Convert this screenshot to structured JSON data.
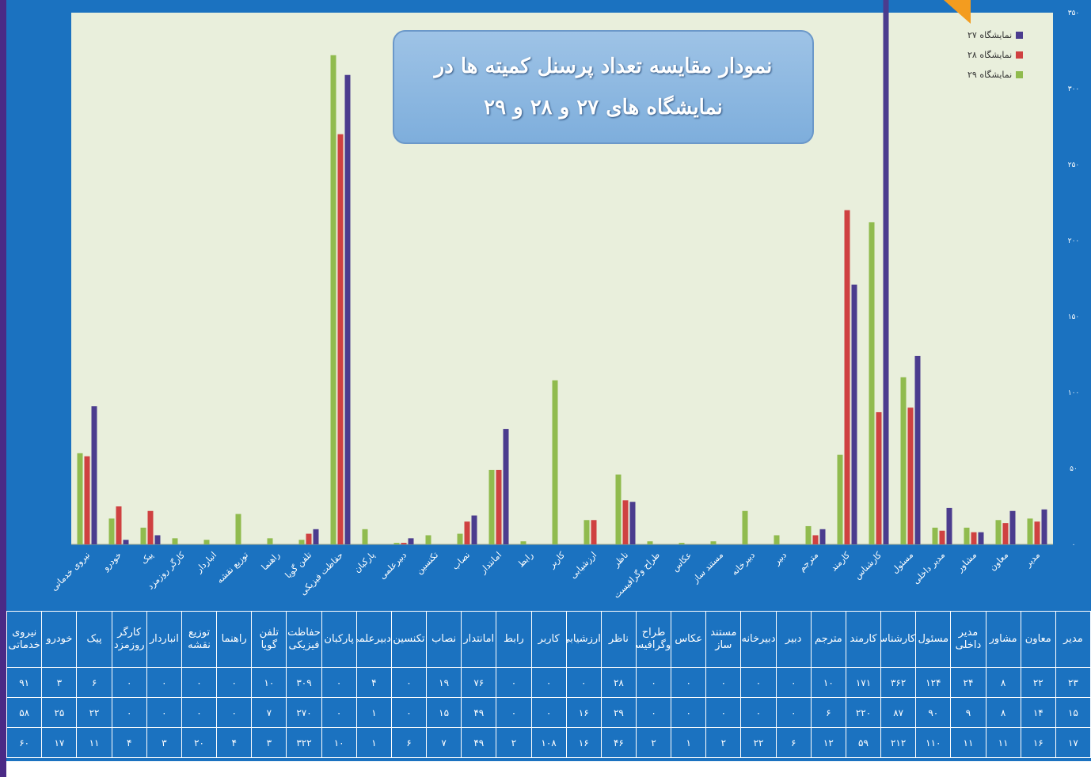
{
  "title_lines": [
    "نمودار مقایسه تعداد پرسنل کمیته ها در",
    "نمایشگاه های ۲۷ و ۲۸ و ۲۹"
  ],
  "colors": {
    "s27": "#4b3c8e",
    "s28": "#cf4141",
    "s29": "#90bb4e",
    "frame": "#1b72c0",
    "plot": "#e9efdc"
  },
  "chart_data": {
    "type": "bar",
    "direction": "rtl",
    "ylim": [
      0,
      350
    ],
    "yticks": [
      "۰",
      "۵۰",
      "۱۰۰",
      "۱۵۰",
      "۲۰۰",
      "۲۵۰",
      "۳۰۰",
      "۳۵۰"
    ],
    "grid": false,
    "legend_position": "top-right",
    "categories": [
      "مدیر",
      "معاون",
      "مشاور",
      "مدیر داخلی",
      "مسئول",
      "کارشناس",
      "کارمند",
      "مترجم",
      "دبیر",
      "دبیرخانه",
      "مستند ساز",
      "عکاس",
      "طراح وگرافیست",
      "ناظر",
      "ارزشیابی",
      "کاربر",
      "رابط",
      "امانتدار",
      "نصاب",
      "تکنسین",
      "دبیرعلمی",
      "پارکبان",
      "حفاظت فیزیکی",
      "تلفن گویا",
      "راهنما",
      "توزیع نقشه",
      "انباردار",
      "کارگر روزمزد",
      "پیک",
      "خودرو",
      "نیروی خدماتی"
    ],
    "series": [
      {
        "name": "نمایشگاه ۲۷",
        "values": [
          23,
          22,
          8,
          24,
          124,
          362,
          171,
          10,
          0,
          0,
          0,
          0,
          0,
          28,
          0,
          0,
          0,
          76,
          19,
          0,
          4,
          0,
          309,
          10,
          0,
          0,
          0,
          0,
          6,
          3,
          91
        ]
      },
      {
        "name": "نمایشگاه ۲۸",
        "values": [
          15,
          14,
          8,
          9,
          90,
          87,
          220,
          6,
          0,
          0,
          0,
          0,
          0,
          29,
          16,
          0,
          0,
          49,
          15,
          0,
          1,
          0,
          270,
          7,
          0,
          0,
          0,
          0,
          22,
          25,
          58
        ]
      },
      {
        "name": "نمایشگاه ۲۹",
        "values": [
          17,
          16,
          11,
          11,
          110,
          212,
          59,
          12,
          6,
          22,
          2,
          1,
          2,
          46,
          16,
          108,
          2,
          49,
          7,
          6,
          1,
          10,
          322,
          3,
          4,
          20,
          3,
          4,
          11,
          17,
          60
        ]
      }
    ]
  },
  "table": {
    "headers": [
      [
        "مدیر"
      ],
      [
        "معاون"
      ],
      [
        "مشاور"
      ],
      [
        "مدیر",
        "داخلی"
      ],
      [
        "مسئول"
      ],
      [
        "کارشناس"
      ],
      [
        "کارمند"
      ],
      [
        "مترجم"
      ],
      [
        "دبیر"
      ],
      [
        "دبیرخانه"
      ],
      [
        "مستند",
        "ساز"
      ],
      [
        "عکاس"
      ],
      [
        "طراح",
        "وگرافیست"
      ],
      [
        "ناظر"
      ],
      [
        "ارزشیابی"
      ],
      [
        "کاربر"
      ],
      [
        "رابط"
      ],
      [
        "امانتدار"
      ],
      [
        "نصاب"
      ],
      [
        "تکنسین"
      ],
      [
        "دبیرعلمی"
      ],
      [
        "پارکبان"
      ],
      [
        "حفاظت",
        "فیزیکی"
      ],
      [
        "تلفن",
        "گویا"
      ],
      [
        "راهنما"
      ],
      [
        "توزیع",
        "نقشه"
      ],
      [
        "انباردار"
      ],
      [
        "کارگر",
        "روزمزد"
      ],
      [
        "پیک"
      ],
      [
        "خودرو"
      ],
      [
        "نیروی",
        "خدماتی"
      ]
    ],
    "rows": [
      [
        "۲۳",
        "۲۲",
        "۸",
        "۲۴",
        "۱۲۴",
        "۳۶۲",
        "۱۷۱",
        "۱۰",
        "۰",
        "۰",
        "۰",
        "۰",
        "۰",
        "۲۸",
        "۰",
        "۰",
        "۰",
        "۷۶",
        "۱۹",
        "۰",
        "۴",
        "۰",
        "۳۰۹",
        "۱۰",
        "۰",
        "۰",
        "۰",
        "۰",
        "۶",
        "۳",
        "۹۱"
      ],
      [
        "۱۵",
        "۱۴",
        "۸",
        "۹",
        "۹۰",
        "۸۷",
        "۲۲۰",
        "۶",
        "۰",
        "۰",
        "۰",
        "۰",
        "۰",
        "۲۹",
        "۱۶",
        "۰",
        "۰",
        "۴۹",
        "۱۵",
        "۰",
        "۱",
        "۰",
        "۲۷۰",
        "۷",
        "۰",
        "۰",
        "۰",
        "۰",
        "۲۲",
        "۲۵",
        "۵۸"
      ],
      [
        "۱۷",
        "۱۶",
        "۱۱",
        "۱۱",
        "۱۱۰",
        "۲۱۲",
        "۵۹",
        "۱۲",
        "۶",
        "۲۲",
        "۲",
        "۱",
        "۲",
        "۴۶",
        "۱۶",
        "۱۰۸",
        "۲",
        "۴۹",
        "۷",
        "۶",
        "۱",
        "۱۰",
        "۳۲۲",
        "۳",
        "۴",
        "۲۰",
        "۳",
        "۴",
        "۱۱",
        "۱۷",
        "۶۰"
      ]
    ]
  }
}
